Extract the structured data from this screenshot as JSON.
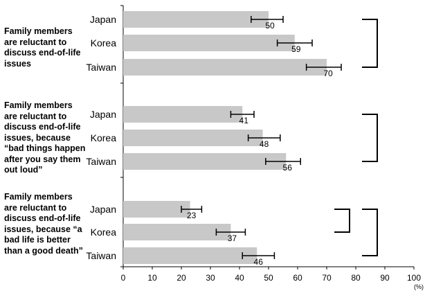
{
  "chart_data": {
    "type": "bar",
    "orientation": "horizontal",
    "xlim": [
      0,
      100
    ],
    "xticks": [
      "0",
      "10",
      "20",
      "30",
      "40",
      "50",
      "60",
      "70",
      "80",
      "90",
      "100"
    ],
    "xunit": "(%)",
    "bar_color": "#c8c8c8",
    "groups": [
      {
        "label_lines": [
          "Family members",
          "are reluctant to",
          "discuss end-of-life",
          "issues"
        ],
        "bars": [
          {
            "category": "Japan",
            "value": 50,
            "value_label": "50",
            "ci": [
              44,
              55
            ]
          },
          {
            "category": "Korea",
            "value": 59,
            "value_label": "59",
            "ci": [
              53,
              65
            ]
          },
          {
            "category": "Taiwan",
            "value": 70,
            "value_label": "70",
            "ci": [
              63,
              75
            ]
          }
        ],
        "brackets": [
          {
            "from_bar": 0,
            "to_bar": 2
          }
        ]
      },
      {
        "label_lines": [
          "Family members",
          "are reluctant to",
          "discuss end-of-life",
          "issues, because",
          "“bad things happen",
          "after you say them",
          "out loud”"
        ],
        "bars": [
          {
            "category": "Japan",
            "value": 41,
            "value_label": "41",
            "ci": [
              37,
              45
            ]
          },
          {
            "category": "Korea",
            "value": 48,
            "value_label": "48",
            "ci": [
              43,
              54
            ]
          },
          {
            "category": "Taiwan",
            "value": 56,
            "value_label": "56",
            "ci": [
              49,
              61
            ]
          }
        ],
        "brackets": [
          {
            "from_bar": 0,
            "to_bar": 2
          }
        ]
      },
      {
        "label_lines": [
          "Family members",
          "are reluctant to",
          "discuss end-of-life",
          "issues, because “a",
          "bad life is better",
          "than a good death”"
        ],
        "bars": [
          {
            "category": "Japan",
            "value": 23,
            "value_label": "23",
            "ci": [
              20,
              27
            ]
          },
          {
            "category": "Korea",
            "value": 37,
            "value_label": "37",
            "ci": [
              32,
              42
            ]
          },
          {
            "category": "Taiwan",
            "value": 46,
            "value_label": "46",
            "ci": [
              41,
              52
            ]
          }
        ],
        "brackets": [
          {
            "from_bar": 0,
            "to_bar": 1
          },
          {
            "from_bar": 0,
            "to_bar": 2
          }
        ]
      }
    ]
  }
}
